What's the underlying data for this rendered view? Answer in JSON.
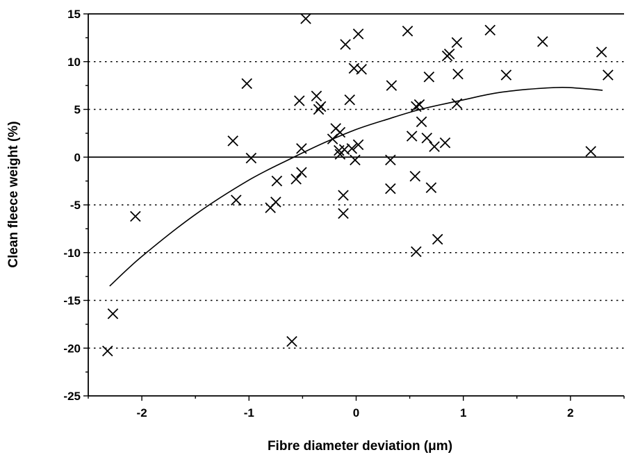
{
  "chart_data": {
    "type": "scatter",
    "title": "",
    "xlabel": "Fibre diameter deviation (μm)",
    "ylabel": "Clean fleece weight (%)",
    "xlim": [
      -2.5,
      2.5
    ],
    "ylim": [
      -25,
      15
    ],
    "x_ticks": [
      -2,
      -1,
      0,
      1,
      2
    ],
    "x_tick_labels": [
      "-2",
      "-1",
      "0",
      "1",
      "2"
    ],
    "y_ticks": [
      15,
      10,
      5,
      0,
      -5,
      -10,
      -15,
      -20,
      -25
    ],
    "y_tick_labels": [
      "15",
      "10",
      "5",
      "0",
      "-5",
      "-10",
      "-15",
      "-20",
      "-25"
    ],
    "gridlines_y": [
      10,
      5,
      -5,
      -10,
      -15,
      -20
    ],
    "grid_style": "dotted horizontal",
    "zero_line": true,
    "marker": "x",
    "color": "#000000",
    "points": [
      [
        -2.32,
        -20.3
      ],
      [
        -2.27,
        -16.4
      ],
      [
        -2.06,
        -6.2
      ],
      [
        -1.15,
        1.7
      ],
      [
        -1.12,
        -4.5
      ],
      [
        -1.02,
        7.7
      ],
      [
        -0.98,
        -0.1
      ],
      [
        -0.8,
        -5.3
      ],
      [
        -0.75,
        -4.7
      ],
      [
        -0.74,
        -2.5
      ],
      [
        -0.6,
        -19.3
      ],
      [
        -0.56,
        -2.3
      ],
      [
        -0.53,
        5.9
      ],
      [
        -0.51,
        0.9
      ],
      [
        -0.51,
        -1.6
      ],
      [
        -0.47,
        14.5
      ],
      [
        -0.37,
        6.4
      ],
      [
        -0.35,
        5.0
      ],
      [
        -0.33,
        5.3
      ],
      [
        -0.22,
        1.9
      ],
      [
        -0.19,
        3.0
      ],
      [
        -0.16,
        0.7
      ],
      [
        -0.15,
        2.6
      ],
      [
        -0.15,
        0.3
      ],
      [
        -0.12,
        -4.0
      ],
      [
        -0.12,
        -5.9
      ],
      [
        -0.11,
        0.8
      ],
      [
        -0.1,
        11.8
      ],
      [
        -0.06,
        6.0
      ],
      [
        -0.04,
        0.9
      ],
      [
        -0.02,
        9.3
      ],
      [
        -0.01,
        -0.3
      ],
      [
        0.02,
        1.3
      ],
      [
        0.02,
        12.9
      ],
      [
        0.05,
        9.2
      ],
      [
        0.32,
        -0.3
      ],
      [
        0.32,
        -3.3
      ],
      [
        0.33,
        7.5
      ],
      [
        0.48,
        13.2
      ],
      [
        0.52,
        2.2
      ],
      [
        0.55,
        -2.0
      ],
      [
        0.56,
        -9.9
      ],
      [
        0.56,
        5.3
      ],
      [
        0.59,
        5.5
      ],
      [
        0.61,
        3.7
      ],
      [
        0.66,
        2.0
      ],
      [
        0.68,
        8.4
      ],
      [
        0.7,
        -3.2
      ],
      [
        0.73,
        1.1
      ],
      [
        0.76,
        -8.6
      ],
      [
        0.83,
        1.5
      ],
      [
        0.85,
        10.6
      ],
      [
        0.87,
        10.8
      ],
      [
        0.94,
        12.0
      ],
      [
        0.94,
        5.6
      ],
      [
        0.95,
        8.7
      ],
      [
        1.25,
        13.3
      ],
      [
        1.4,
        8.6
      ],
      [
        1.74,
        12.1
      ],
      [
        2.19,
        0.6
      ],
      [
        2.29,
        11.0
      ],
      [
        2.35,
        8.6
      ]
    ],
    "fit_curve": {
      "x": [
        -2.3,
        -2.0,
        -1.5,
        -1.0,
        -0.6,
        -0.3,
        0.0,
        0.3,
        0.6,
        1.0,
        1.3,
        1.6,
        1.9,
        2.1,
        2.3
      ],
      "y": [
        -13.5,
        -10.4,
        -6.0,
        -2.4,
        -0.1,
        1.5,
        2.9,
        4.0,
        5.0,
        6.0,
        6.7,
        7.1,
        7.3,
        7.2,
        7.0
      ]
    }
  }
}
